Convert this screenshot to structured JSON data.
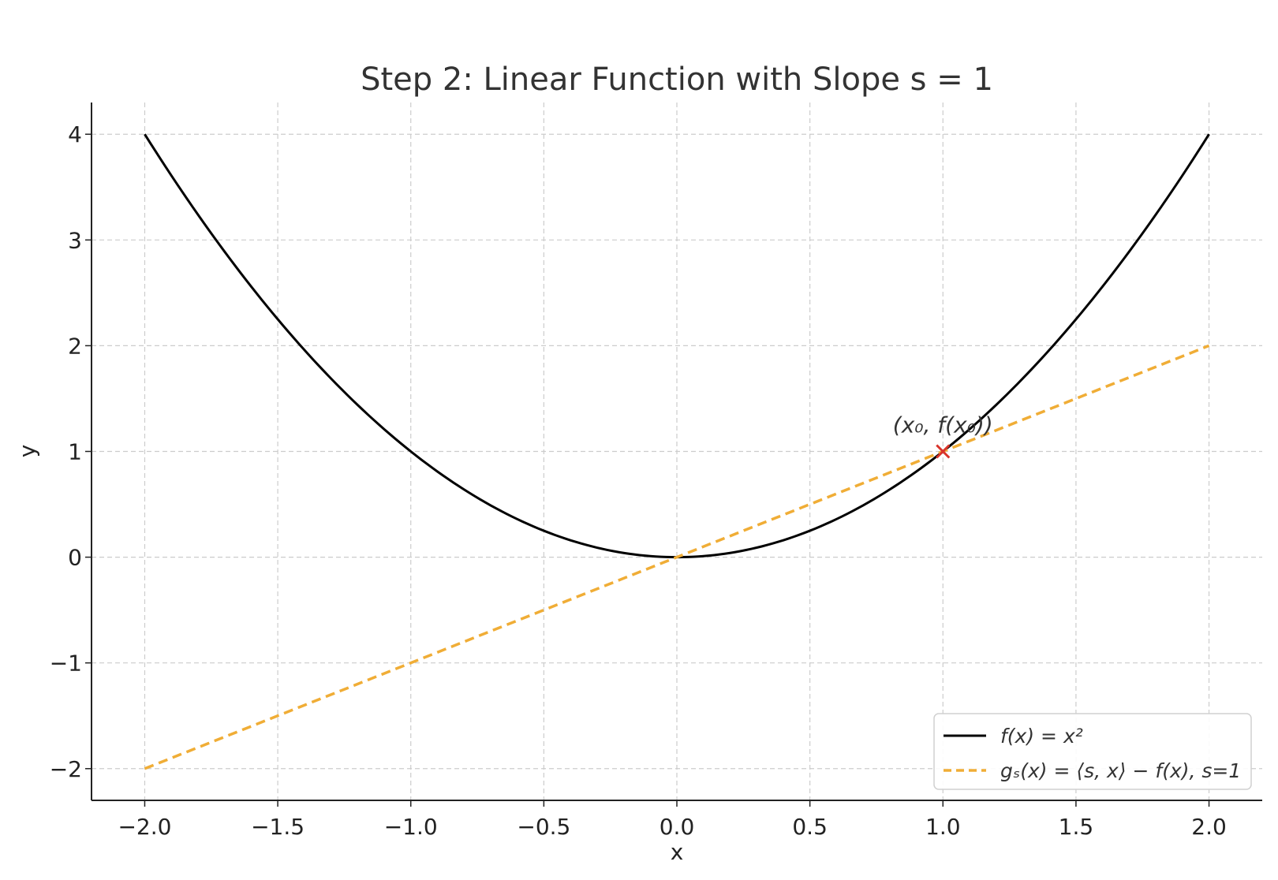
{
  "chart_data": {
    "type": "line",
    "title": "Step 2: Linear Function with Slope s = 1",
    "xlabel": "x",
    "ylabel": "y",
    "xlim": [
      -2.2,
      2.2
    ],
    "ylim": [
      -2.3,
      4.3
    ],
    "xticks": [
      -2.0,
      -1.5,
      -1.0,
      -0.5,
      0.0,
      0.5,
      1.0,
      1.5,
      2.0
    ],
    "xtick_labels": [
      "−2.0",
      "−1.5",
      "−1.0",
      "−0.5",
      "0.0",
      "0.5",
      "1.0",
      "1.5",
      "2.0"
    ],
    "yticks": [
      -2,
      -1,
      0,
      1,
      2,
      3,
      4
    ],
    "ytick_labels": [
      "−2",
      "−1",
      "0",
      "1",
      "2",
      "3",
      "4"
    ],
    "grid": true,
    "legend_position": "bottom-right",
    "series": [
      {
        "name": "f(x) = x²",
        "style": "solid",
        "color": "#000000",
        "x": [
          -2.0,
          -1.75,
          -1.5,
          -1.25,
          -1.0,
          -0.75,
          -0.5,
          -0.25,
          0.0,
          0.25,
          0.5,
          0.75,
          1.0,
          1.25,
          1.5,
          1.75,
          2.0
        ],
        "y": [
          4.0,
          3.0625,
          2.25,
          1.5625,
          1.0,
          0.5625,
          0.25,
          0.0625,
          0.0,
          0.0625,
          0.25,
          0.5625,
          1.0,
          1.5625,
          2.25,
          3.0625,
          4.0
        ]
      },
      {
        "name": "gₛ(x) = ⟨s, x⟩ − f(x), s=1",
        "style": "dashed",
        "color": "#f0ad36",
        "x": [
          -2.0,
          2.0
        ],
        "y": [
          -2.0,
          2.0
        ]
      }
    ],
    "annotations": [
      {
        "text": "(x₀, f(x₀))",
        "x": 1.0,
        "y": 1.0,
        "marker": "x",
        "marker_color": "#d9342b"
      }
    ]
  }
}
